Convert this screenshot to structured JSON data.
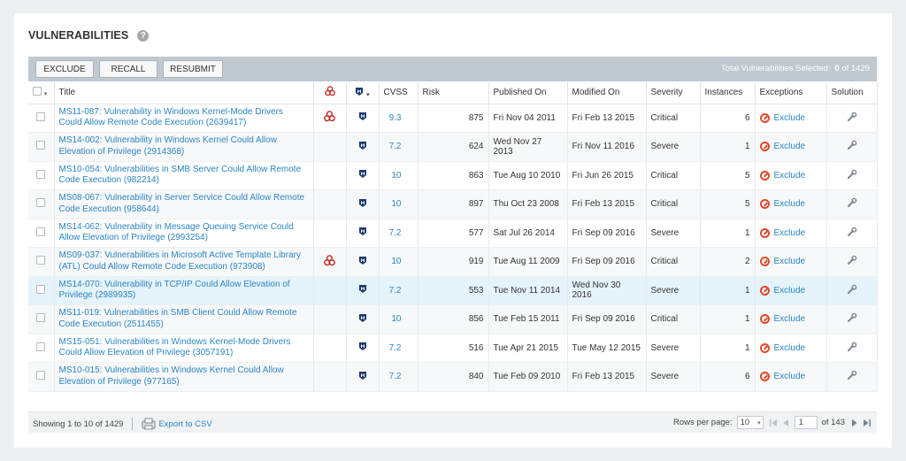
{
  "header": {
    "title": "VULNERABILITIES"
  },
  "toolbar": {
    "buttons": [
      "EXCLUDE",
      "RECALL",
      "RESUBMIT"
    ],
    "total_label": "Total Vulnerabilities Selected:",
    "total_selected": "0",
    "total_of": "of 1429"
  },
  "columns": [
    "Title",
    "CVSS",
    "Risk",
    "Published On",
    "Modified On",
    "Severity",
    "Instances",
    "Exceptions",
    "Solution"
  ],
  "rows": [
    {
      "title": "MS11-087: Vulnerability in Windows Kernel-Mode Drivers Could Allow Remote Code Execution (2639417)",
      "malware": true,
      "cvss": "9.3",
      "risk": "875",
      "published": "Fri Nov 04 2011",
      "modified": "Fri Feb 13 2015",
      "severity": "Critical",
      "instances": "6",
      "exception": "Exclude"
    },
    {
      "title": "MS14-002: Vulnerability in Windows Kernel Could Allow Elevation of Privilege (2914368)",
      "malware": false,
      "cvss": "7.2",
      "risk": "624",
      "published": "Wed Nov 27 2013",
      "modified": "Fri Nov 11 2016",
      "severity": "Severe",
      "instances": "1",
      "exception": "Exclude"
    },
    {
      "title": "MS10-054: Vulnerabilities in SMB Server Could Allow Remote Code Execution (982214)",
      "malware": false,
      "cvss": "10",
      "risk": "863",
      "published": "Tue Aug 10 2010",
      "modified": "Fri Jun 26 2015",
      "severity": "Critical",
      "instances": "5",
      "exception": "Exclude"
    },
    {
      "title": "MS08-067: Vulnerability in Server Service Could Allow Remote Code Execution (958644)",
      "malware": false,
      "cvss": "10",
      "risk": "897",
      "published": "Thu Oct 23 2008",
      "modified": "Fri Feb 13 2015",
      "severity": "Critical",
      "instances": "5",
      "exception": "Exclude"
    },
    {
      "title": "MS14-062: Vulnerability in Message Queuing Service Could Allow Elevation of Privilege (2993254)",
      "malware": false,
      "cvss": "7.2",
      "risk": "577",
      "published": "Sat Jul 26 2014",
      "modified": "Fri Sep 09 2016",
      "severity": "Severe",
      "instances": "1",
      "exception": "Exclude"
    },
    {
      "title": "MS09-037: Vulnerabilities in Microsoft Active Template Library (ATL) Could Allow Remote Code Execution (973908)",
      "malware": true,
      "cvss": "10",
      "risk": "919",
      "published": "Tue Aug 11 2009",
      "modified": "Fri Sep 09 2016",
      "severity": "Critical",
      "instances": "2",
      "exception": "Exclude"
    },
    {
      "title": "MS14-070: Vulnerability in TCP/IP Could Allow Elevation of Privilege (2989935)",
      "malware": false,
      "cvss": "7.2",
      "risk": "553",
      "published": "Tue Nov 11 2014",
      "modified": "Wed Nov 30 2016",
      "severity": "Severe",
      "instances": "1",
      "exception": "Exclude"
    },
    {
      "title": "MS11-019: Vulnerabilities in SMB Client Could Allow Remote Code Execution (2511455)",
      "malware": false,
      "cvss": "10",
      "risk": "856",
      "published": "Tue Feb 15 2011",
      "modified": "Fri Sep 09 2016",
      "severity": "Critical",
      "instances": "1",
      "exception": "Exclude"
    },
    {
      "title": "MS15-051: Vulnerabilities in Windows Kernel-Mode Drivers Could Allow Elevation of Privilege (3057191)",
      "malware": false,
      "cvss": "7.2",
      "risk": "516",
      "published": "Tue Apr 21 2015",
      "modified": "Tue May 12 2015",
      "severity": "Severe",
      "instances": "1",
      "exception": "Exclude"
    },
    {
      "title": "MS10-015: Vulnerabilities in Windows Kernel Could Allow Elevation of Privilege (977165)",
      "malware": false,
      "cvss": "7.2",
      "risk": "840",
      "published": "Tue Feb 09 2010",
      "modified": "Fri Feb 13 2015",
      "severity": "Severe",
      "instances": "6",
      "exception": "Exclude"
    }
  ],
  "footer": {
    "showing": "Showing 1 to 10 of 1429",
    "export": "Export to CSV",
    "rows_per_page_label": "Rows per page:",
    "rows_per_page": "10",
    "current_page": "1",
    "page_total": "of 143"
  },
  "colors": {
    "link": "#2a86c4",
    "toolbar": "#c0c8d0",
    "highlight_row": "#e5f3fb",
    "exception_icon": "#e04a2a",
    "malware_icon": "#c0322b",
    "metasploit_icon": "#1c3a6e"
  }
}
